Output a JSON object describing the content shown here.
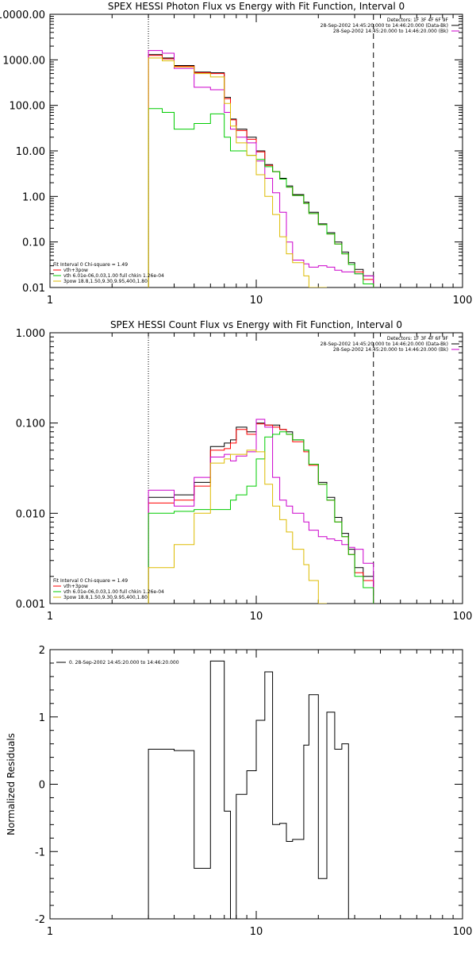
{
  "chart_data": [
    {
      "type": "line",
      "title": "SPEX HESSI Photon Flux vs Energy with Fit Function, Interval 0",
      "xscale": "log",
      "yscale": "log",
      "xlim": [
        1,
        100
      ],
      "ylim": [
        0.01,
        10000
      ],
      "xticks": [
        "1",
        "10",
        "100"
      ],
      "yticks": [
        "0.01",
        "0.10",
        "1.00",
        "10.00",
        "100.00",
        "1000.00",
        "10000.00"
      ],
      "xlabel": "",
      "ylabel": "",
      "vlines": {
        "dotted": 3,
        "dashed": 37
      },
      "legend_topright": [
        {
          "text": "Detectors: 1F 3F 4F 6F 9F",
          "color": "#000000"
        },
        {
          "text": "28-Sep-2002 14:45:20.000 to 14:46:20.000 (Data-Bk)",
          "color": "#000000"
        },
        {
          "text": "28-Sep-2002 14:45:20.000 to 14:46:20.000 (Bk)",
          "color": "#cc00cc"
        }
      ],
      "legend_bottomleft": [
        {
          "text": "Fit Interval 0   Chi-square = 1.49",
          "color": "#000000"
        },
        {
          "text": "vth+3pow",
          "color": "#ff0000"
        },
        {
          "text": "vth 6.01e-06,0.03,1.00  full chkin 1.26e-04",
          "color": "#00cc00"
        },
        {
          "text": "3pow 18.8,1.50,9.30,9.95,400,1.80",
          "color": "#ddbb00"
        }
      ],
      "edges": [
        3,
        3.5,
        4,
        5,
        6,
        7,
        7.5,
        8,
        9,
        10,
        11,
        12,
        13,
        14,
        15,
        17,
        18,
        20,
        22,
        24,
        26,
        28,
        30,
        33,
        37
      ],
      "series": [
        {
          "color": "#000000",
          "values": [
            1300,
            1100,
            750,
            540,
            520,
            150,
            50,
            30,
            20,
            10,
            5,
            3.5,
            2.5,
            1.7,
            1.1,
            0.75,
            0.45,
            0.25,
            0.16,
            0.1,
            0.06,
            0.035,
            0.025,
            0.018
          ]
        },
        {
          "color": "#ff0000",
          "values": [
            1250,
            1050,
            720,
            520,
            500,
            140,
            48,
            28,
            18,
            9.5,
            4.8,
            3.5,
            2.4,
            1.6,
            1.05,
            0.7,
            0.42,
            0.24,
            0.15,
            0.09,
            0.055,
            0.032,
            0.022,
            0.015
          ]
        },
        {
          "color": "#cc00cc",
          "values": [
            1600,
            1400,
            650,
            250,
            220,
            70,
            30,
            20,
            15,
            6,
            2.5,
            1.2,
            0.45,
            0.1,
            0.04,
            0.033,
            0.028,
            0.03,
            0.028,
            0.024,
            0.022,
            0.022,
            0.02,
            0.018
          ]
        },
        {
          "color": "#00cc00",
          "values": [
            85,
            70,
            30,
            40,
            65,
            20,
            10,
            10,
            8,
            6.5,
            4.5,
            3.5,
            2.4,
            1.6,
            1.05,
            0.7,
            0.42,
            0.24,
            0.15,
            0.09,
            0.055,
            0.032,
            0.02,
            0.012
          ]
        },
        {
          "color": "#ddbb00",
          "values": [
            1100,
            950,
            700,
            500,
            420,
            110,
            35,
            15,
            8,
            3,
            1,
            0.4,
            0.13,
            0.055,
            0.035,
            0.018,
            0.01,
            0.005
          ]
        }
      ]
    },
    {
      "type": "line",
      "title": "SPEX HESSI Count Flux vs Energy with Fit Function, Interval 0",
      "xscale": "log",
      "yscale": "log",
      "xlim": [
        1,
        100
      ],
      "ylim": [
        0.001,
        1
      ],
      "xticks": [
        "1",
        "10",
        "100"
      ],
      "yticks": [
        "0.001",
        "0.010",
        "0.100",
        "1.000"
      ],
      "xlabel": "",
      "ylabel": "",
      "vlines": {
        "dotted": 3,
        "dashed": 37
      },
      "legend_topright": [
        {
          "text": "Detectors: 1F 3F 4F 6F 9F",
          "color": "#000000"
        },
        {
          "text": "28-Sep-2002 14:45:20.000 to 14:46:20.000 (Data-Bk)",
          "color": "#000000"
        },
        {
          "text": "28-Sep-2002 14:45:20.000 to 14:46:20.000 (Bk)",
          "color": "#cc00cc"
        }
      ],
      "legend_bottomleft": [
        {
          "text": "Fit Interval 0   Chi-square = 1.49",
          "color": "#000000"
        },
        {
          "text": "vth+3pow",
          "color": "#ff0000"
        },
        {
          "text": "vth 6.01e-06,0.03,1.00  full chkin 1.26e-04",
          "color": "#00cc00"
        },
        {
          "text": "3pow 18.8,1.50,9.30,9.95,400,1.80",
          "color": "#ddbb00"
        }
      ],
      "edges": [
        3,
        3.5,
        4,
        5,
        6,
        7,
        7.5,
        8,
        9,
        10,
        11,
        12,
        13,
        14,
        15,
        17,
        18,
        20,
        22,
        24,
        26,
        28,
        30,
        33,
        37
      ],
      "series": [
        {
          "color": "#000000",
          "values": [
            0.015,
            0.015,
            0.016,
            0.022,
            0.055,
            0.06,
            0.065,
            0.09,
            0.08,
            0.1,
            0.095,
            0.095,
            0.085,
            0.08,
            0.065,
            0.05,
            0.035,
            0.022,
            0.015,
            0.009,
            0.006,
            0.004,
            0.0025,
            0.002
          ]
        },
        {
          "color": "#ff0000",
          "values": [
            0.013,
            0.013,
            0.014,
            0.02,
            0.05,
            0.052,
            0.06,
            0.085,
            0.075,
            0.098,
            0.095,
            0.09,
            0.085,
            0.075,
            0.062,
            0.048,
            0.034,
            0.021,
            0.014,
            0.008,
            0.0055,
            0.0035,
            0.0022,
            0.0018
          ]
        },
        {
          "color": "#cc00cc",
          "values": [
            0.018,
            0.018,
            0.012,
            0.025,
            0.042,
            0.045,
            0.038,
            0.043,
            0.048,
            0.11,
            0.09,
            0.025,
            0.014,
            0.012,
            0.01,
            0.008,
            0.0065,
            0.0055,
            0.0052,
            0.005,
            0.0045,
            0.0042,
            0.004,
            0.0028
          ]
        },
        {
          "color": "#00cc00",
          "values": [
            0.01,
            0.01,
            0.0105,
            0.011,
            0.011,
            0.011,
            0.014,
            0.016,
            0.02,
            0.04,
            0.07,
            0.075,
            0.08,
            0.075,
            0.065,
            0.05,
            0.035,
            0.021,
            0.014,
            0.008,
            0.0055,
            0.0035,
            0.002,
            0.0015
          ]
        },
        {
          "color": "#ddbb00",
          "values": [
            0.0025,
            0.0025,
            0.0045,
            0.01,
            0.036,
            0.04,
            0.045,
            0.045,
            0.05,
            0.048,
            0.021,
            0.012,
            0.0085,
            0.0062,
            0.004,
            0.0027,
            0.0018,
            0.0009
          ]
        }
      ]
    },
    {
      "type": "line",
      "title": "",
      "xscale": "log",
      "yscale": "linear",
      "xlim": [
        1,
        100
      ],
      "ylim": [
        -2,
        2
      ],
      "xticks": [
        "1",
        "10",
        "100"
      ],
      "yticks": [
        "-2",
        "-1",
        "0",
        "1",
        "2"
      ],
      "xlabel": "",
      "ylabel": "Normalized Residuals",
      "legend": [
        {
          "text": "0. 28-Sep-2002 14:45:20.000 to 14:46:20.000",
          "color": "#000000"
        }
      ],
      "edges": [
        3,
        4,
        5,
        6,
        7,
        7.5,
        8,
        9,
        10,
        11,
        12,
        13,
        14,
        15,
        17,
        18,
        20,
        22,
        24,
        26,
        28,
        30,
        33,
        37
      ],
      "series": [
        {
          "color": "#000000",
          "values": [
            0.52,
            0.5,
            -1.25,
            1.83,
            -0.4,
            -2.05,
            -0.15,
            0.2,
            0.95,
            1.67,
            -0.6,
            -0.58,
            -0.85,
            -0.82,
            0.58,
            1.33,
            -1.4,
            1.07,
            0.52,
            0.6
          ]
        }
      ]
    }
  ]
}
